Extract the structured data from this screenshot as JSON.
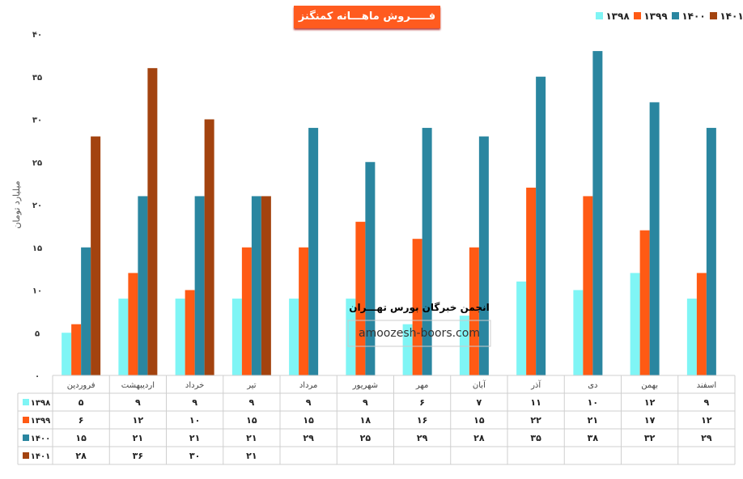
{
  "chart_data": {
    "type": "bar",
    "title": "فـــــروش ماهـــانه کمنگنز",
    "ylabel": "میلیارد تومان",
    "ylim": [
      0,
      40
    ],
    "yticks": [
      "۰",
      "۵",
      "۱۰",
      "۱۵",
      "۲۰",
      "۲۵",
      "۳۰",
      "۳۵",
      "۴۰"
    ],
    "ytick_values": [
      0,
      5,
      10,
      15,
      20,
      25,
      30,
      35,
      40
    ],
    "grid": false,
    "legend_position": "top-right",
    "categories": [
      "فروردین",
      "اردیبهشت",
      "خرداد",
      "تیر",
      "مرداد",
      "شهریور",
      "مهر",
      "آبان",
      "آذر",
      "دی",
      "بهمن",
      "اسفند"
    ],
    "series": [
      {
        "name": "۱۳۹۸",
        "color": "#7ff5f5",
        "values": [
          5,
          9,
          9,
          9,
          9,
          9,
          6,
          7,
          11,
          10,
          12,
          9
        ],
        "labels": [
          "۵",
          "۹",
          "۹",
          "۹",
          "۹",
          "۹",
          "۶",
          "۷",
          "۱۱",
          "۱۰",
          "۱۲",
          "۹"
        ]
      },
      {
        "name": "۱۳۹۹",
        "color": "#ff5a14",
        "values": [
          6,
          12,
          10,
          15,
          15,
          18,
          16,
          15,
          22,
          21,
          17,
          12
        ],
        "labels": [
          "۶",
          "۱۲",
          "۱۰",
          "۱۵",
          "۱۵",
          "۱۸",
          "۱۶",
          "۱۵",
          "۲۲",
          "۲۱",
          "۱۷",
          "۱۲"
        ]
      },
      {
        "name": "۱۴۰۰",
        "color": "#2a86a0",
        "values": [
          15,
          21,
          21,
          21,
          29,
          25,
          29,
          28,
          35,
          38,
          32,
          29
        ],
        "labels": [
          "۱۵",
          "۲۱",
          "۲۱",
          "۲۱",
          "۲۹",
          "۲۵",
          "۲۹",
          "۲۸",
          "۳۵",
          "۳۸",
          "۳۲",
          "۲۹"
        ]
      },
      {
        "name": "۱۴۰۱",
        "color": "#a3430f",
        "values": [
          28,
          36,
          30,
          21,
          null,
          null,
          null,
          null,
          null,
          null,
          null,
          null
        ],
        "labels": [
          "۲۸",
          "۳۶",
          "۳۰",
          "۲۱",
          "",
          "",
          "",
          "",
          "",
          "",
          "",
          ""
        ]
      }
    ]
  },
  "watermark": {
    "line1": "انجمن خبرگان بورس تهـــران",
    "line2": "amoozesh-boors.com"
  }
}
